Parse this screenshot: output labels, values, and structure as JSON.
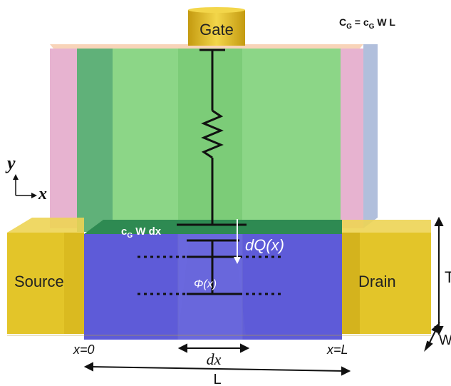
{
  "gate_label": "Gate",
  "capacitance_formula": {
    "lhs_main": "C",
    "lhs_sub": "G",
    "eq": " = c",
    "rhs_sub": "G",
    "rhs_rest": " W L"
  },
  "source_label": "Source",
  "drain_label": "Drain",
  "axis_y_label": "y",
  "axis_x_label": "x",
  "cg_label": {
    "main": "c",
    "sub": "G",
    "rest": " W dx"
  },
  "dq_label": "dQ(x)",
  "phi_label": "Φ(x)",
  "x0_label": "x=0",
  "xl_label": "x=L",
  "dx_label": "dx",
  "length_label": "L",
  "thickness_label": "T",
  "width_label": "W",
  "colors": {
    "gate_fill": "#e8c21a",
    "green_oxide": "#7fd17a",
    "channel_blue": "#5552d6",
    "contact_yellow": "#e2c21e",
    "pink_side": "#e3a6c8",
    "blue_side": "#a8b8d8"
  }
}
